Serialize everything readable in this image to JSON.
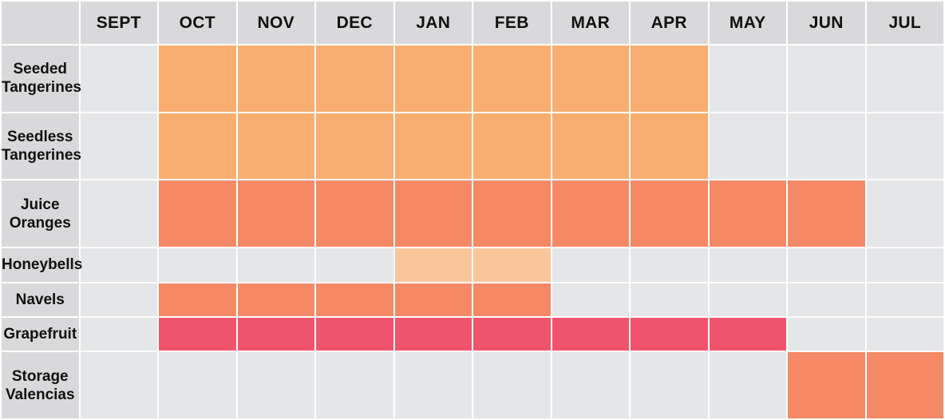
{
  "chart_data": {
    "type": "table",
    "title": "",
    "columns": [
      "SEPT",
      "OCT",
      "NOV",
      "DEC",
      "JAN",
      "FEB",
      "MAR",
      "APR",
      "MAY",
      "JUN",
      "JUL"
    ],
    "empty_color": "#e5e6e8",
    "rows": [
      {
        "label": "Seeded\nTangerines",
        "color": "#f8ae70",
        "available": [
          0,
          1,
          1,
          1,
          1,
          1,
          1,
          1,
          0,
          0,
          0
        ]
      },
      {
        "label": "Seedless\nTangerines",
        "color": "#f8ae70",
        "available": [
          0,
          1,
          1,
          1,
          1,
          1,
          1,
          1,
          0,
          0,
          0
        ]
      },
      {
        "label": "Juice\nOranges",
        "color": "#f58966",
        "available": [
          0,
          1,
          1,
          1,
          1,
          1,
          1,
          1,
          1,
          1,
          0
        ]
      },
      {
        "label": "Honeybells",
        "color": "#f9c69c",
        "available": [
          0,
          0,
          0,
          0,
          1,
          1,
          0,
          0,
          0,
          0,
          0
        ]
      },
      {
        "label": "Navels",
        "color": "#f58966",
        "available": [
          0,
          1,
          1,
          1,
          1,
          1,
          0,
          0,
          0,
          0,
          0
        ]
      },
      {
        "label": "Grapefruit",
        "color": "#f0546c",
        "available": [
          0,
          1,
          1,
          1,
          1,
          1,
          1,
          1,
          1,
          0,
          0
        ]
      },
      {
        "label": "Storage\nValencias",
        "color": "#f58966",
        "available": [
          0,
          0,
          0,
          0,
          0,
          0,
          0,
          0,
          0,
          1,
          1
        ]
      }
    ]
  }
}
